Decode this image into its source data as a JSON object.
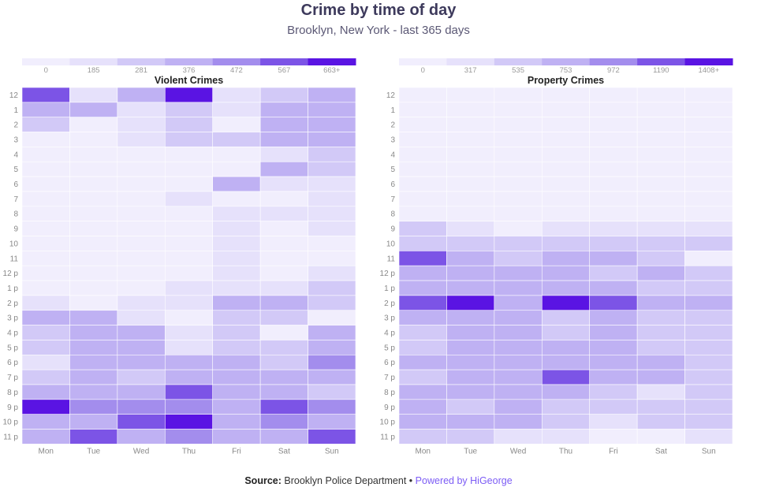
{
  "header": {
    "title": "Crime by time of day",
    "subtitle": "Brooklyn, New York - last 365 days"
  },
  "footer": {
    "source_label": "Source:",
    "source_text": "Brooklyn Police Department",
    "separator": "•",
    "powered_by": "Powered by HiGeorge"
  },
  "colors": {
    "scale": [
      "#f1eefd",
      "#e6e1fb",
      "#d2c9f7",
      "#bfb1f3",
      "#a38ded",
      "#7c54e6",
      "#5a14e3"
    ],
    "background_cell": "#f3f0fd"
  },
  "chart_data": [
    {
      "type": "heatmap",
      "title": "Violent Crimes",
      "x": [
        "Mon",
        "Tue",
        "Wed",
        "Thu",
        "Fri",
        "Sat",
        "Sun"
      ],
      "y": [
        "12",
        "1",
        "2",
        "3",
        "4",
        "5",
        "6",
        "7",
        "8",
        "9",
        "10",
        "11",
        "12 p",
        "1 p",
        "2 p",
        "3 p",
        "4 p",
        "5 p",
        "6 p",
        "7 p",
        "8 p",
        "9 p",
        "10 p",
        "11 p"
      ],
      "color_scale": {
        "labels": [
          "0",
          "185",
          "281",
          "376",
          "472",
          "567",
          "663+"
        ],
        "thresholds": [
          0,
          185,
          281,
          376,
          472,
          567,
          663
        ]
      },
      "values": [
        [
          600,
          260,
          380,
          680,
          240,
          360,
          430
        ],
        [
          380,
          440,
          200,
          340,
          250,
          390,
          430
        ],
        [
          350,
          150,
          260,
          340,
          170,
          430,
          440
        ],
        [
          180,
          160,
          240,
          330,
          290,
          420,
          390
        ],
        [
          140,
          150,
          160,
          170,
          180,
          230,
          320
        ],
        [
          130,
          150,
          130,
          150,
          160,
          380,
          340
        ],
        [
          160,
          170,
          140,
          140,
          390,
          240,
          240
        ],
        [
          140,
          130,
          130,
          280,
          170,
          170,
          200
        ],
        [
          140,
          140,
          170,
          150,
          250,
          260,
          190
        ],
        [
          140,
          150,
          160,
          160,
          190,
          160,
          190
        ],
        [
          170,
          160,
          160,
          160,
          260,
          170,
          180
        ],
        [
          140,
          160,
          160,
          160,
          260,
          160,
          170
        ],
        [
          150,
          160,
          170,
          160,
          250,
          170,
          240
        ],
        [
          160,
          180,
          180,
          230,
          190,
          200,
          300
        ],
        [
          260,
          100,
          250,
          260,
          420,
          380,
          360
        ],
        [
          410,
          400,
          270,
          180,
          300,
          370,
          120
        ],
        [
          350,
          450,
          460,
          260,
          290,
          160,
          430
        ],
        [
          330,
          450,
          450,
          260,
          330,
          320,
          440
        ],
        [
          250,
          460,
          380,
          420,
          420,
          360,
          560
        ],
        [
          350,
          440,
          340,
          460,
          420,
          380,
          380
        ],
        [
          470,
          410,
          400,
          590,
          400,
          440,
          300
        ],
        [
          680,
          560,
          560,
          560,
          430,
          590,
          560
        ],
        [
          420,
          450,
          580,
          680,
          450,
          480,
          450
        ],
        [
          380,
          600,
          440,
          560,
          430,
          390,
          600
        ]
      ]
    },
    {
      "type": "heatmap",
      "title": "Property Crimes",
      "x": [
        "Mon",
        "Tue",
        "Wed",
        "Thu",
        "Fri",
        "Sat",
        "Sun"
      ],
      "y": [
        "12",
        "1",
        "2",
        "3",
        "4",
        "5",
        "6",
        "7",
        "8",
        "9",
        "10",
        "11",
        "12 p",
        "1 p",
        "2 p",
        "3 p",
        "4 p",
        "5 p",
        "6 p",
        "7 p",
        "8 p",
        "9 p",
        "10 p",
        "11 p"
      ],
      "color_scale": {
        "labels": [
          "0",
          "317",
          "535",
          "753",
          "972",
          "1190",
          "1408+"
        ],
        "thresholds": [
          0,
          317,
          535,
          753,
          972,
          1190,
          1408
        ]
      },
      "values": [
        [
          300,
          280,
          280,
          280,
          280,
          270,
          290
        ],
        [
          290,
          250,
          250,
          240,
          260,
          250,
          300
        ],
        [
          280,
          200,
          200,
          190,
          220,
          210,
          260
        ],
        [
          200,
          180,
          180,
          180,
          200,
          230,
          220
        ],
        [
          170,
          160,
          160,
          160,
          170,
          180,
          190
        ],
        [
          160,
          150,
          150,
          210,
          150,
          160,
          170
        ],
        [
          150,
          140,
          140,
          150,
          150,
          150,
          160
        ],
        [
          150,
          150,
          150,
          150,
          150,
          150,
          160
        ],
        [
          220,
          210,
          210,
          210,
          220,
          210,
          230
        ],
        [
          560,
          320,
          310,
          330,
          340,
          330,
          340
        ],
        [
          660,
          560,
          620,
          660,
          600,
          580,
          620
        ],
        [
          1220,
          900,
          640,
          900,
          760,
          640,
          300
        ],
        [
          900,
          880,
          780,
          820,
          680,
          760,
          620
        ],
        [
          800,
          760,
          900,
          760,
          880,
          640,
          620
        ],
        [
          1200,
          1420,
          940,
          1420,
          1200,
          940,
          800
        ],
        [
          920,
          760,
          940,
          740,
          760,
          700,
          600
        ],
        [
          580,
          760,
          780,
          720,
          760,
          700,
          600
        ],
        [
          740,
          820,
          940,
          760,
          880,
          740,
          600
        ],
        [
          800,
          820,
          820,
          820,
          900,
          880,
          600
        ],
        [
          740,
          760,
          900,
          1200,
          880,
          760,
          600
        ],
        [
          760,
          900,
          780,
          780,
          560,
          380,
          600
        ],
        [
          800,
          720,
          900,
          740,
          560,
          620,
          600
        ],
        [
          800,
          760,
          780,
          720,
          380,
          620,
          600
        ],
        [
          720,
          560,
          320,
          320,
          300,
          300,
          400
        ]
      ]
    }
  ]
}
